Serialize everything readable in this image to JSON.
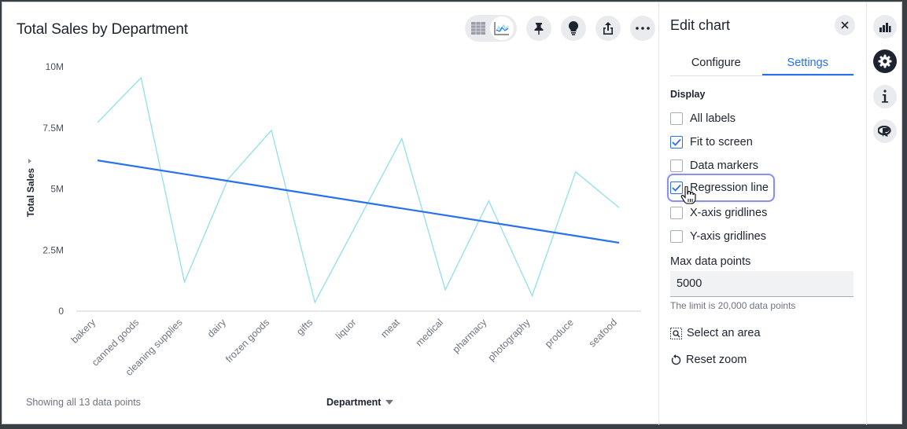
{
  "chart": {
    "title": "Total Sales by Department",
    "footer_text": "Showing all 13 data points",
    "x_axis_dropdown": "Department",
    "toolbar": [
      {
        "name": "table-view-icon",
        "label": "Table view"
      },
      {
        "name": "chart-view-icon",
        "label": "Chart view",
        "active": true
      },
      {
        "name": "pin-icon",
        "label": "Pin"
      },
      {
        "name": "lightbulb-icon",
        "label": "Insights"
      },
      {
        "name": "share-icon",
        "label": "Share"
      },
      {
        "name": "more-icon",
        "label": "More"
      }
    ]
  },
  "chart_data": {
    "type": "line",
    "title": "Total Sales by Department",
    "xlabel": "Department",
    "ylabel": "Total Sales",
    "categories": [
      "bakery",
      "canned goods",
      "cleaning supplies",
      "dairy",
      "frozen goods",
      "gifts",
      "liquor",
      "meat",
      "medical",
      "pharmacy",
      "photography",
      "produce",
      "seafood"
    ],
    "series": [
      {
        "name": "Total Sales",
        "color": "#8fe0ec",
        "values": [
          7720000,
          9550000,
          1190000,
          5400000,
          7400000,
          360000,
          3700000,
          7060000,
          870000,
          4510000,
          630000,
          5700000,
          4230000
        ]
      },
      {
        "name": "Regression line",
        "color": "#2770ef",
        "type": "linear-fit",
        "start": 6170000,
        "end": 2800000
      }
    ],
    "yticks": [
      0,
      2500000,
      5000000,
      7500000,
      10000000
    ],
    "ytick_labels": [
      "0",
      "2.5M",
      "5M",
      "7.5M",
      "10M"
    ],
    "ylim": [
      0,
      10000000
    ],
    "grid": false,
    "legend": "none"
  },
  "panel": {
    "title": "Edit chart",
    "close_label": "Close",
    "tabs": [
      {
        "label": "Configure",
        "active": false
      },
      {
        "label": "Settings",
        "active": true
      }
    ],
    "display_label": "Display",
    "options": [
      {
        "label": "All labels",
        "checked": false
      },
      {
        "label": "Fit to screen",
        "checked": true
      },
      {
        "label": "Data markers",
        "checked": false
      },
      {
        "label": "Regression line",
        "checked": true
      },
      {
        "label": "X-axis gridlines",
        "checked": false
      },
      {
        "label": "Y-axis gridlines",
        "checked": false
      }
    ],
    "max_data_points_label": "Max data points",
    "max_data_points_value": "5000",
    "max_data_points_hint": "The limit is 20,000 data points",
    "select_area_label": "Select an area",
    "reset_zoom_label": "Reset zoom"
  },
  "rail": [
    {
      "name": "chart-type-icon"
    },
    {
      "name": "settings-gear-icon",
      "active": true
    },
    {
      "name": "info-icon"
    },
    {
      "name": "r-language-icon"
    }
  ],
  "colors": {
    "accent": "#2770ef",
    "line": "#8fe0ec",
    "text": "#1d232f",
    "muted": "#6e7480"
  }
}
